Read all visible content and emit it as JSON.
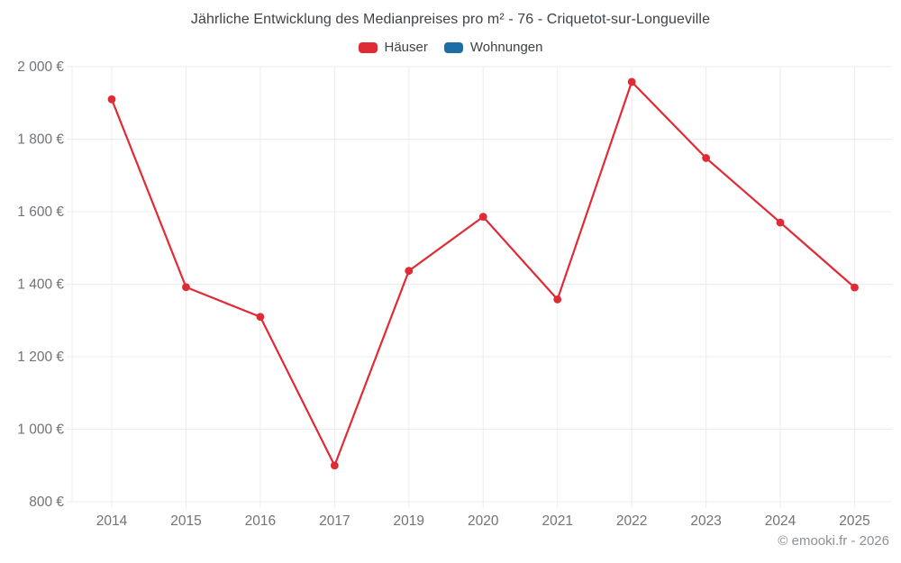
{
  "chart_data": {
    "type": "line",
    "title": "Jährliche Entwicklung des Medianpreises pro m² - 76 - Criquetot-sur-Longueville",
    "categories": [
      "2014",
      "2015",
      "2016",
      "2017",
      "2019",
      "2020",
      "2021",
      "2022",
      "2023",
      "2024",
      "2025"
    ],
    "series": [
      {
        "name": "Häuser",
        "color": "#e02b35",
        "values": [
          1910,
          1392,
          1310,
          900,
          1437,
          1586,
          1358,
          1958,
          1748,
          1570,
          1391
        ]
      },
      {
        "name": "Wohnungen",
        "color": "#1c6fa6",
        "values": []
      }
    ],
    "xlabel": "",
    "ylabel": "",
    "ylim": [
      800,
      2000
    ],
    "ytick_step": 200,
    "ytick_suffix": " €",
    "ytick_labels": [
      "800 €",
      "1 000 €",
      "1 200 €",
      "1 400 €",
      "1 600 €",
      "1 800 €",
      "2 000 €"
    ],
    "grid": true,
    "legend_position": "top"
  },
  "footer": {
    "copyright": "© emooki.fr - 2026"
  },
  "colors": {
    "grid": "#ececec",
    "axis_text": "#6f7479",
    "title_text": "#3d4347",
    "footer_text": "#8d9195",
    "background": "#ffffff"
  }
}
